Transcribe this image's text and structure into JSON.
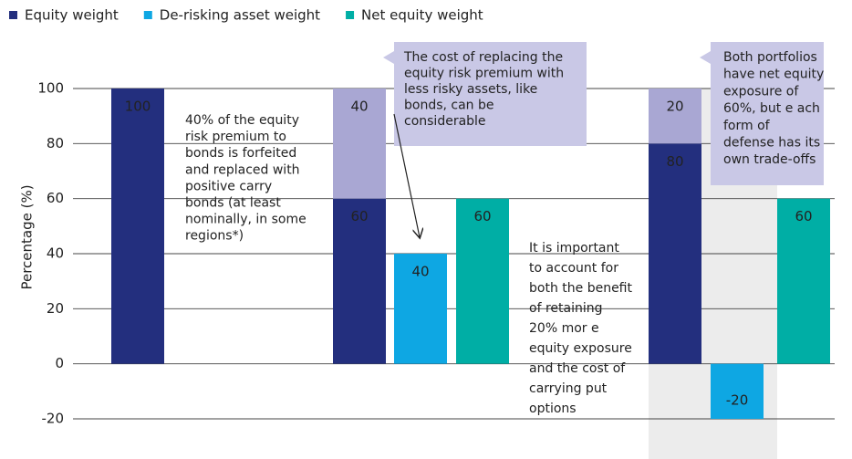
{
  "chart_data": {
    "type": "bar",
    "y_label": "Percentage (%)",
    "categories": [
      null,
      null,
      null
    ],
    "series": [
      {
        "name": "Equity weight",
        "color": "#232f7e",
        "values": [
          100,
          60,
          80
        ]
      },
      {
        "color": "#a9a7d3",
        "values": [
          null,
          40,
          20
        ]
      },
      {
        "name": "De-risking asset weight",
        "color": "#0ea7e3",
        "values": [
          null,
          40,
          -20
        ]
      },
      {
        "name": "Net equity weight",
        "color": "#00aea5",
        "values": [
          null,
          60,
          60
        ]
      }
    ],
    "ylim": [
      -20,
      100
    ],
    "yticks": [
      -20,
      0,
      20,
      40,
      60,
      80,
      100
    ],
    "grid": true,
    "annotations": [
      {
        "lines": [
          "40% of the equity",
          "risk premium to",
          "bonds is forfeited",
          "and replaced with",
          "positive carry",
          "bonds (at least",
          "nominally, in some",
          "regions*)"
        ]
      },
      {
        "lines": [
          "The cost of replacing the",
          "equity risk premium with",
          "less risky assets, like",
          "bonds, can be",
          "considerable"
        ]
      },
      {
        "lines": [
          "It is important",
          "to account for",
          "both the benefit",
          "of retaining",
          "20% mor e",
          "equity exposure",
          "and the cost of",
          "carrying put",
          "options"
        ]
      },
      {
        "lines": [
          "Both portfolios",
          "have net equity",
          "exposure of",
          "60%, but e ach",
          "form of",
          "defense has its",
          "own trade-offs"
        ]
      }
    ]
  }
}
